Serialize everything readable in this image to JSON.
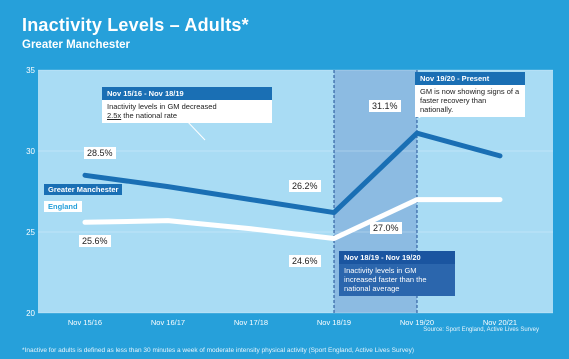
{
  "header": {
    "title": "Inactivity Levels – Adults*",
    "subtitle": "Greater Manchester"
  },
  "source": "Source: Sport England, Active Lives Survey",
  "footnote": "*Inactive for adults is defined as less than 30 minutes a week of moderate intensity physical activity (Sport England, Active Lives Survey)",
  "colors": {
    "background": "#26a0da",
    "plot_bg": "#a9dcf4",
    "highlight_band": "#8cbbe2",
    "gm_line": "#1a6fb4",
    "england_line": "#ffffff",
    "box_header": "#1a6fb4",
    "box_dark": "#2b66ad"
  },
  "annotations": {
    "box1": {
      "title": "Nov 15/16 - Nov 18/19",
      "body": "Inactivity levels in GM decreased",
      "body2_emph": "2.5x",
      "body2_rest": " the national rate"
    },
    "box2": {
      "title": "Nov 18/19 - Nov 19/20",
      "body": "Inactivity levels in GM increased faster than the national average"
    },
    "box3": {
      "title": "Nov 19/20 - Present",
      "body": "GM is now showing signs of a faster recovery than nationally."
    }
  },
  "point_labels": {
    "gm_start": "28.5%",
    "gm_mid": "26.2%",
    "gm_peak": "31.1%",
    "eng_start": "25.6%",
    "eng_mid": "24.6%",
    "eng_peak": "27.0%"
  },
  "chart_data": {
    "type": "line",
    "title": "Inactivity Levels – Adults*",
    "subtitle": "Greater Manchester",
    "categories": [
      "Nov 15/16",
      "Nov 16/17",
      "Nov 17/18",
      "Nov 18/19",
      "Nov 19/20",
      "Nov 20/21"
    ],
    "y_ticks": [
      "20",
      "25",
      "30",
      "35"
    ],
    "ylim": [
      20,
      35
    ],
    "grid": true,
    "series": [
      {
        "name": "Greater Manchester",
        "values": [
          28.5,
          27.8,
          27.0,
          26.2,
          31.1,
          29.7
        ]
      },
      {
        "name": "England",
        "values": [
          25.6,
          25.7,
          25.2,
          24.6,
          27.0,
          27.0
        ]
      }
    ]
  }
}
